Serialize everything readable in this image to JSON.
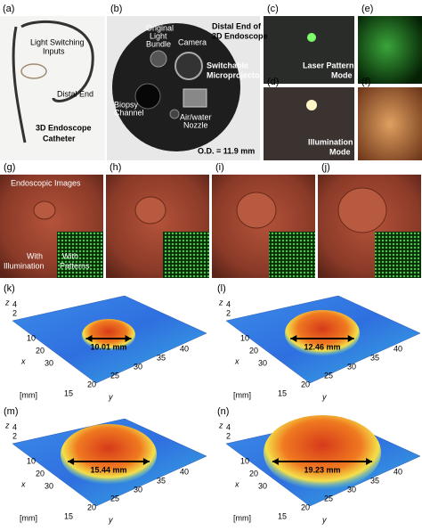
{
  "panels": {
    "a": {
      "label": "(a)",
      "light_switching_inputs": [
        "Light Switching",
        "Inputs"
      ],
      "distal_end": "Distal End",
      "catheter": [
        "3D Endoscope",
        "Catheter"
      ]
    },
    "b": {
      "label": "(b)",
      "original_light_bundle": [
        "Original",
        "Light",
        "Bundle"
      ],
      "camera": "Camera",
      "distal_end_title": [
        "Distal End of",
        "3D Endoscope"
      ],
      "microprojector": [
        "Switchable",
        "Microprojector"
      ],
      "biopsy_channel": [
        "Biopsy",
        "Channel"
      ],
      "nozzle": [
        "Air/water",
        "Nozzle"
      ],
      "outer_diameter": "O.D. = 11.9 mm"
    },
    "c": {
      "label": "(c)",
      "mode": [
        "Laser Pattern",
        "Mode"
      ]
    },
    "d": {
      "label": "(d)",
      "mode": [
        "Illumination",
        "Mode"
      ]
    },
    "e": {
      "label": "(e)"
    },
    "f": {
      "label": "(f)"
    },
    "g": {
      "label": "(g)",
      "endoscopic_images": "Endoscopic Images",
      "with_illumination": [
        "With",
        "Illumination"
      ],
      "with_patterns": [
        "With",
        "Patterns"
      ]
    },
    "h": {
      "label": "(h)"
    },
    "i": {
      "label": "(i)"
    },
    "j": {
      "label": "(j)"
    }
  },
  "plots": [
    {
      "label": "(k)",
      "measurement": "10.01 mm",
      "z": "z",
      "x": "x",
      "y": "y",
      "unit": "[mm]",
      "zticks": [
        "2",
        "4"
      ],
      "xticks": [
        "10",
        "20",
        "30"
      ],
      "yticks": [
        "15",
        "20",
        "25",
        "30",
        "35",
        "40"
      ]
    },
    {
      "label": "(l)",
      "measurement": "12.46 mm",
      "z": "z",
      "x": "x",
      "y": "y",
      "unit": "[mm]",
      "zticks": [
        "2",
        "4"
      ],
      "xticks": [
        "10",
        "20",
        "30"
      ],
      "yticks": [
        "15",
        "20",
        "25",
        "30",
        "35",
        "40"
      ]
    },
    {
      "label": "(m)",
      "measurement": "15.44 mm",
      "z": "z",
      "x": "x",
      "y": "y",
      "unit": "[mm]",
      "zticks": [
        "2",
        "4"
      ],
      "xticks": [
        "10",
        "20",
        "30"
      ],
      "yticks": [
        "15",
        "20",
        "25",
        "30",
        "35",
        "40"
      ]
    },
    {
      "label": "(n)",
      "measurement": "19.23 mm",
      "z": "z",
      "x": "x",
      "y": "y",
      "unit": "[mm]",
      "zticks": [
        "2",
        "4"
      ],
      "xticks": [
        "10",
        "20",
        "30"
      ],
      "yticks": [
        "15",
        "20",
        "25",
        "30",
        "35",
        "40"
      ]
    }
  ]
}
